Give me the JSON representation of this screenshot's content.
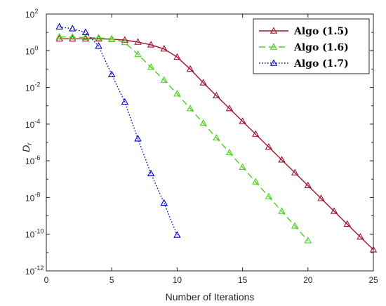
{
  "chart_data": {
    "type": "line",
    "title": "",
    "xlabel": "Number of Iterations",
    "ylabel": "D_r",
    "xlim": [
      0,
      25
    ],
    "ylim_log10": [
      -12,
      2
    ],
    "yscale": "log",
    "x_ticks": [
      "0",
      "5",
      "10",
      "15",
      "20",
      "25"
    ],
    "y_ticks": [
      {
        "base": "10",
        "exp": "2"
      },
      {
        "base": "10",
        "exp": "0"
      },
      {
        "base": "10",
        "exp": "-2"
      },
      {
        "base": "10",
        "exp": "-4"
      },
      {
        "base": "10",
        "exp": "-6"
      },
      {
        "base": "10",
        "exp": "-8"
      },
      {
        "base": "10",
        "exp": "-10"
      },
      {
        "base": "10",
        "exp": "-12"
      }
    ],
    "grid": false,
    "legend_position": "top-right",
    "series": [
      {
        "name": "Algo (1.5)",
        "color": "#A2142F",
        "line_style": "solid",
        "marker": "triangle",
        "x": [
          1,
          2,
          3,
          4,
          5,
          6,
          7,
          8,
          9,
          10,
          11,
          12,
          13,
          14,
          15,
          16,
          17,
          18,
          19,
          20,
          21,
          22,
          23,
          24,
          25
        ],
        "y_log10": [
          0.65,
          0.65,
          0.65,
          0.65,
          0.63,
          0.58,
          0.47,
          0.32,
          0.1,
          -0.35,
          -1.0,
          -1.75,
          -2.45,
          -3.15,
          -3.85,
          -4.55,
          -5.25,
          -5.95,
          -6.65,
          -7.35,
          -8.05,
          -8.75,
          -9.45,
          -10.15,
          -10.85
        ]
      },
      {
        "name": "Algo (1.6)",
        "color": "#4DD11F",
        "line_style": "dashed",
        "marker": "triangle",
        "x": [
          1,
          2,
          3,
          4,
          5,
          6,
          7,
          8,
          9,
          10,
          11,
          12,
          13,
          14,
          15,
          16,
          17,
          18,
          19,
          20
        ],
        "y_log10": [
          0.75,
          0.75,
          0.72,
          0.7,
          0.65,
          0.45,
          -0.2,
          -0.9,
          -1.6,
          -2.35,
          -3.15,
          -3.95,
          -4.75,
          -5.55,
          -6.35,
          -7.15,
          -7.95,
          -8.75,
          -9.55,
          -10.35
        ]
      },
      {
        "name": "Algo (1.7)",
        "color": "#0000CC",
        "line_style": "dotted",
        "marker": "triangle",
        "x": [
          1,
          2,
          3,
          4,
          5,
          6,
          7,
          8,
          9,
          10
        ],
        "y_log10": [
          1.3,
          1.2,
          1.0,
          0.25,
          -1.3,
          -2.8,
          -4.8,
          -6.7,
          -8.3,
          -10.05
        ]
      }
    ]
  }
}
